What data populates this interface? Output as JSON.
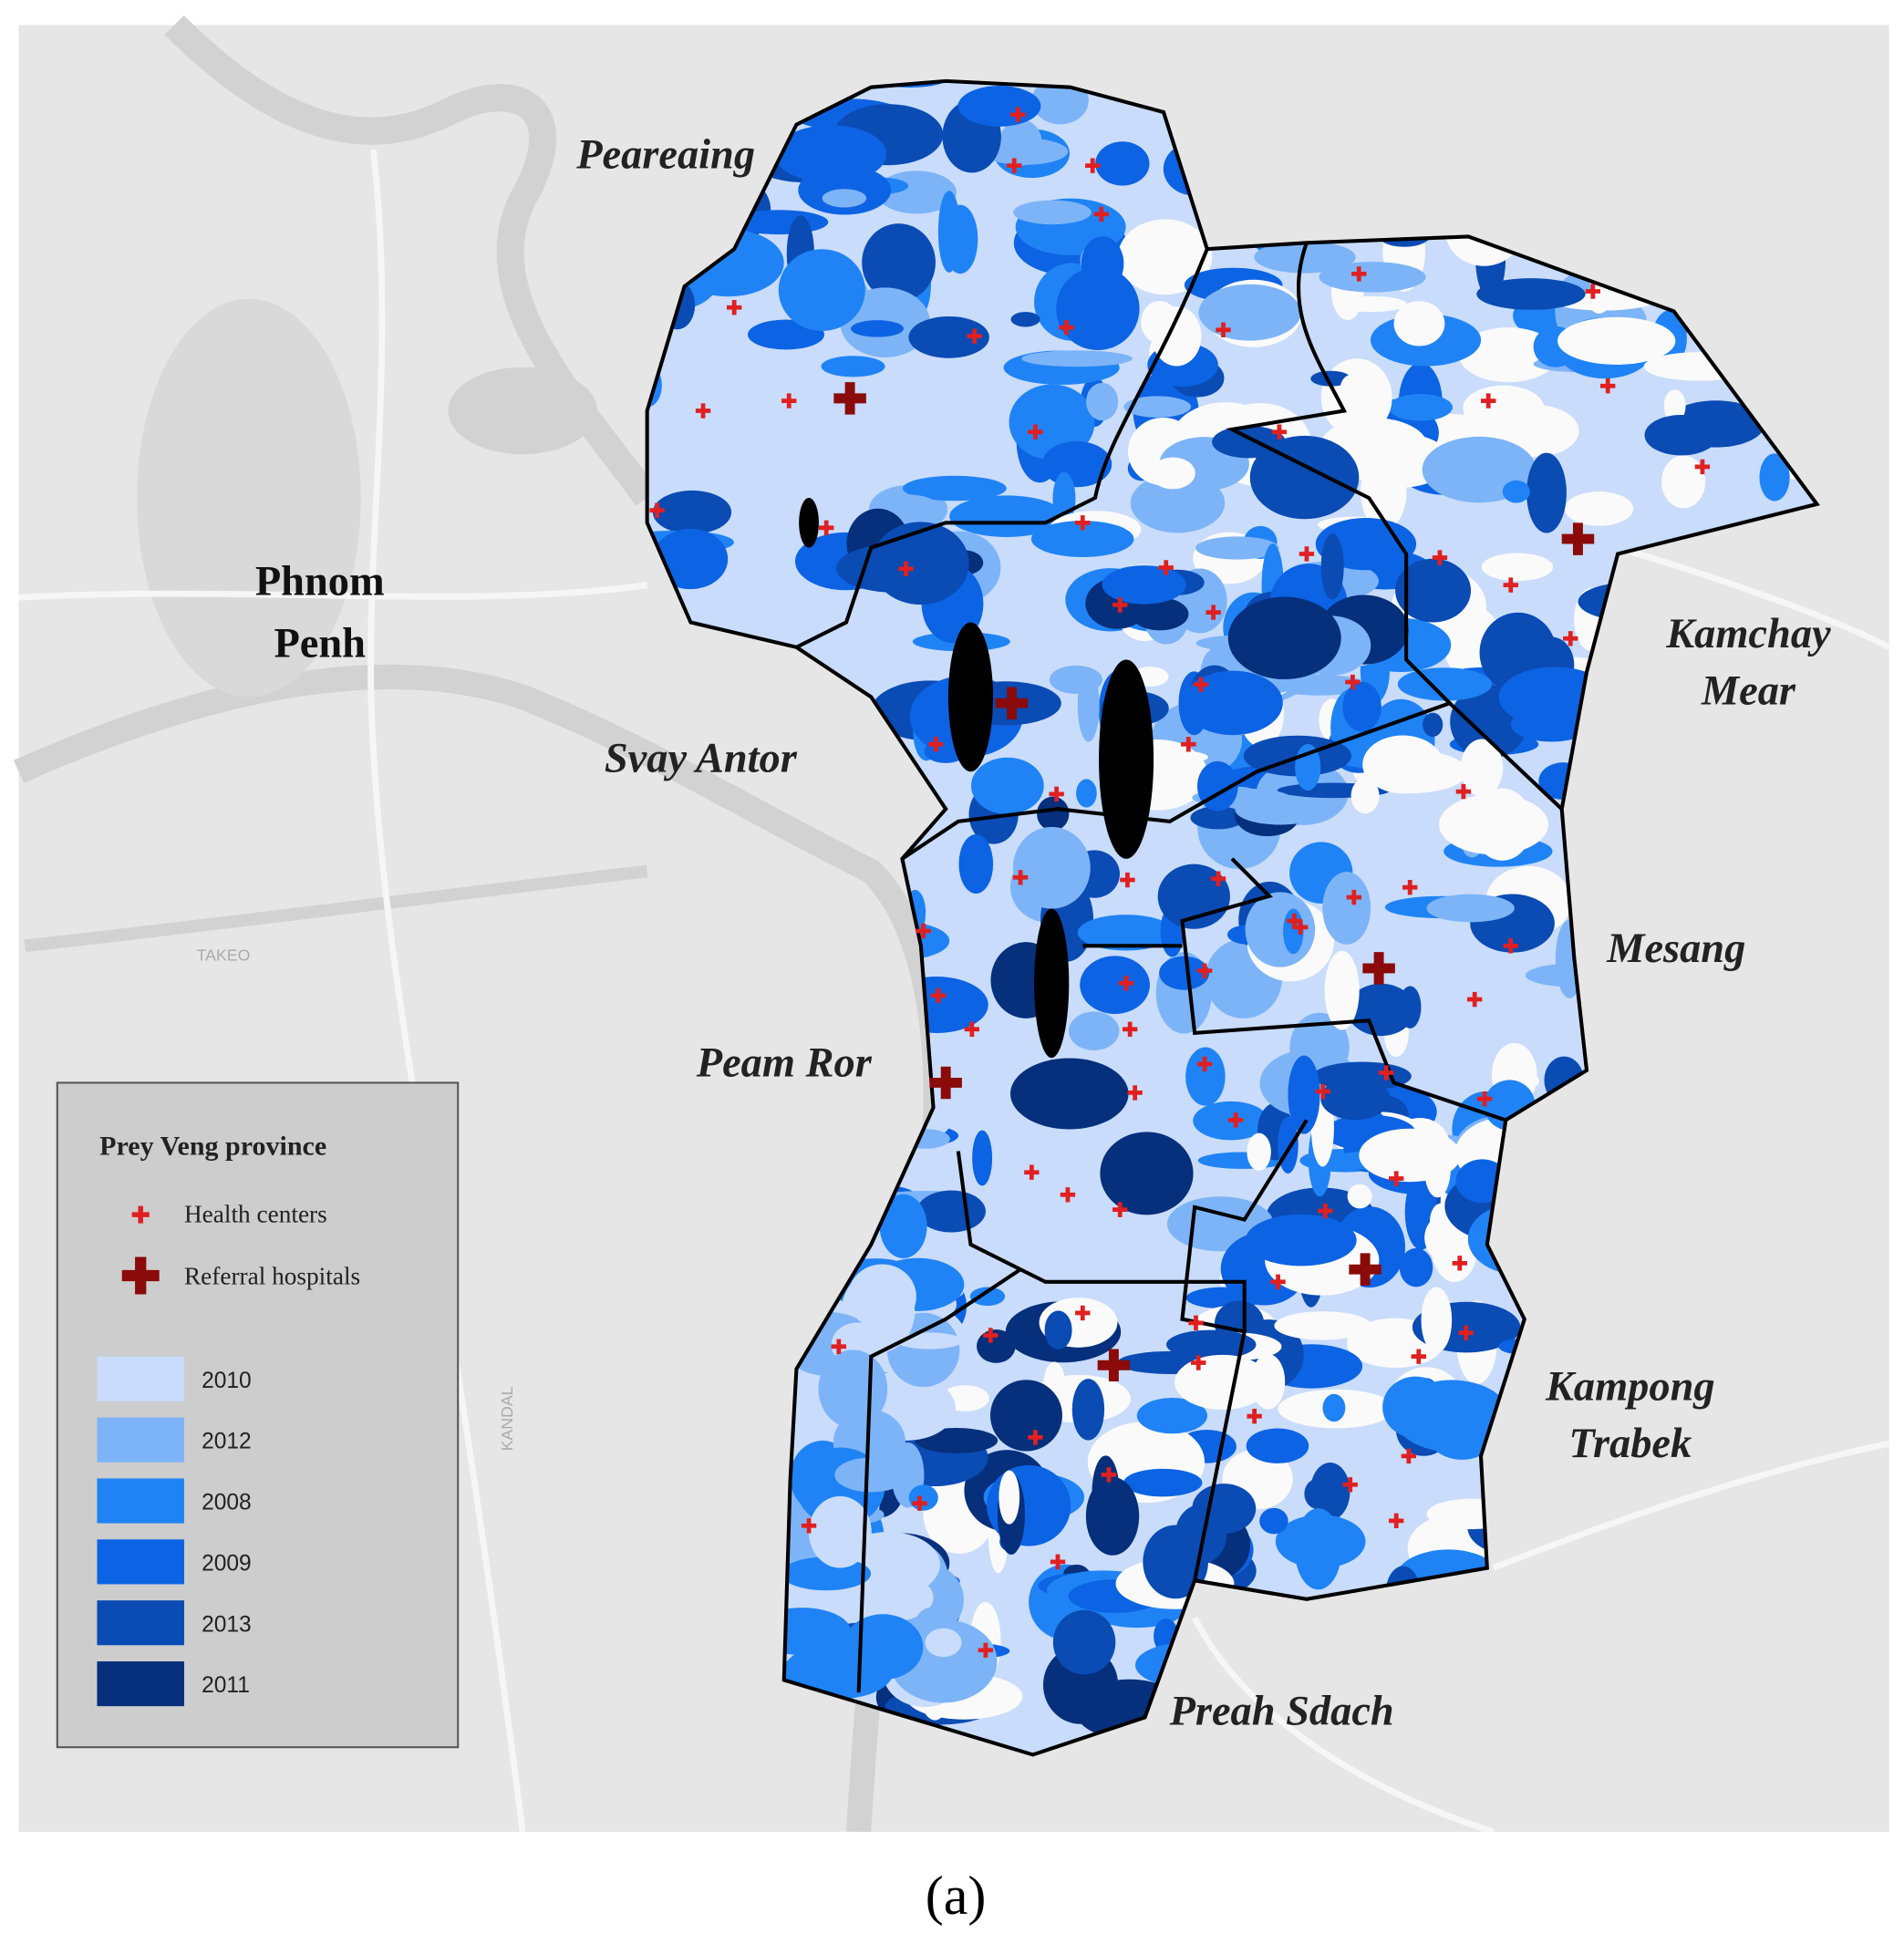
{
  "map": {
    "city_label": [
      "Phnom",
      "Penh"
    ],
    "district_labels": [
      {
        "lines": [
          "Peareaing"
        ]
      },
      {
        "lines": [
          "Svay Antor"
        ]
      },
      {
        "lines": [
          "Peam Ror"
        ]
      },
      {
        "lines": [
          "Kamchay",
          "Mear"
        ]
      },
      {
        "lines": [
          "Mesang"
        ]
      },
      {
        "lines": [
          "Kampong",
          "Trabek"
        ]
      },
      {
        "lines": [
          "Preah Sdach"
        ]
      }
    ],
    "road_labels": [
      "TAKEO",
      "KANDAL"
    ],
    "legend": {
      "title": "Prey Veng province",
      "symbols": [
        "Health centers",
        "Referral hospitals"
      ],
      "classes": [
        {
          "label": "2010",
          "color": "#c9dcfb"
        },
        {
          "label": "2012",
          "color": "#7db4f8"
        },
        {
          "label": "2008",
          "color": "#1f83f5"
        },
        {
          "label": "2009",
          "color": "#0c63e3"
        },
        {
          "label": "2013",
          "color": "#0a4bb4"
        },
        {
          "label": "2011",
          "color": "#062f7c"
        }
      ]
    },
    "caption": "(a)"
  }
}
